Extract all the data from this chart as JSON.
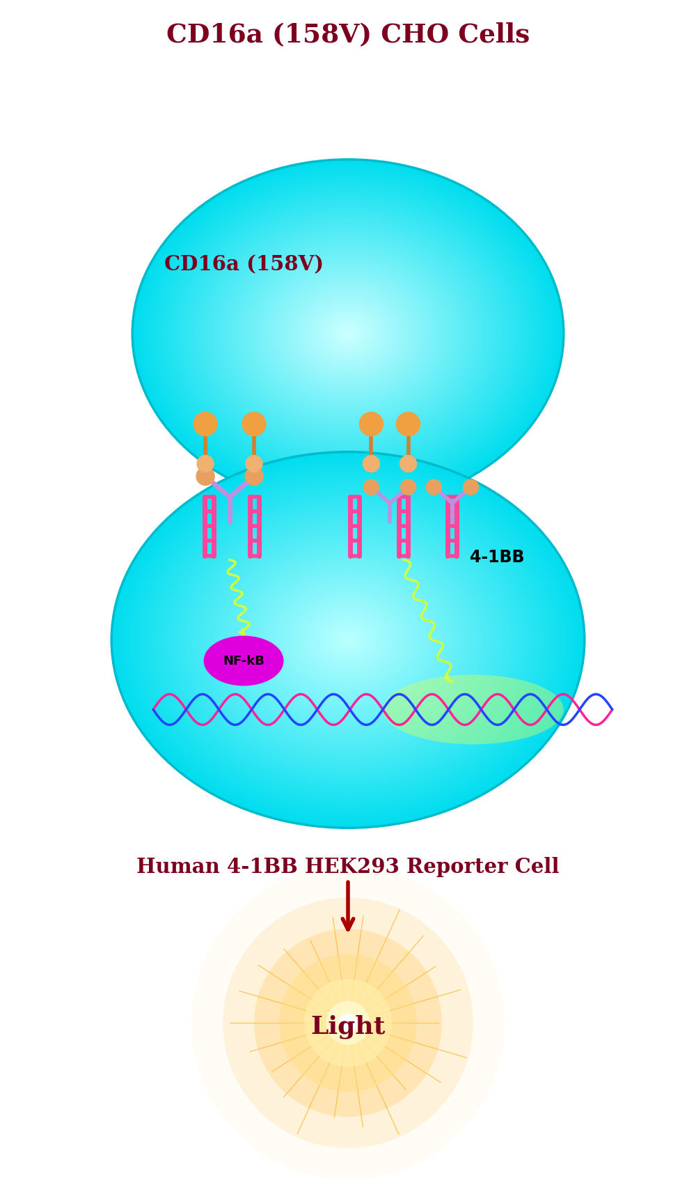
{
  "title_top": "CD16a (158V) CHO Cells",
  "label_cho_cell": "CD16a (158V)",
  "label_4_1bb": "4-1BB",
  "label_nfkb": "NF-kB",
  "label_reporter": "Human 4-1BB HEK293 Reporter Cell",
  "label_light": "Light",
  "title_color": "#7B0020",
  "bg_color": "#FFFFFF",
  "receptor_color": "#E07830",
  "antibody_color": "#C090E0",
  "membrane_receptor_color": "#FF4499",
  "nfkb_color": "#DD00DD",
  "signal_color": "#CCFF44",
  "dna_color1": "#FF2299",
  "dna_color2": "#2244FF",
  "arrow_color": "#AA0000"
}
